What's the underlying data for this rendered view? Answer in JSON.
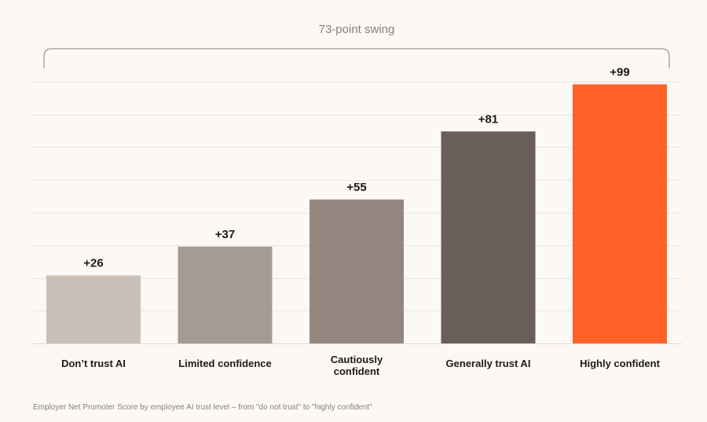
{
  "chart_data": {
    "type": "bar",
    "categories": [
      [
        "Don’t trust AI"
      ],
      [
        "Limited confidence"
      ],
      [
        "Cautiously",
        "confident"
      ],
      [
        "Generally trust AI"
      ],
      [
        "Highly confident"
      ]
    ],
    "values": [
      26,
      37,
      55,
      81,
      99
    ],
    "value_labels": [
      "+26",
      "+37",
      "+55",
      "+81",
      "+99"
    ],
    "bar_colors": [
      "#cbc0b8",
      "#a59a94",
      "#938780",
      "#6a5e5b",
      "#ff6229"
    ],
    "ylim": [
      0,
      100
    ],
    "grid": true,
    "gridline_step": 12.5,
    "annotation": "73-point swing",
    "caption": "Employer Net Promoter Score by employee AI trust level – from \"do not trust\" to \"highly confident\""
  }
}
